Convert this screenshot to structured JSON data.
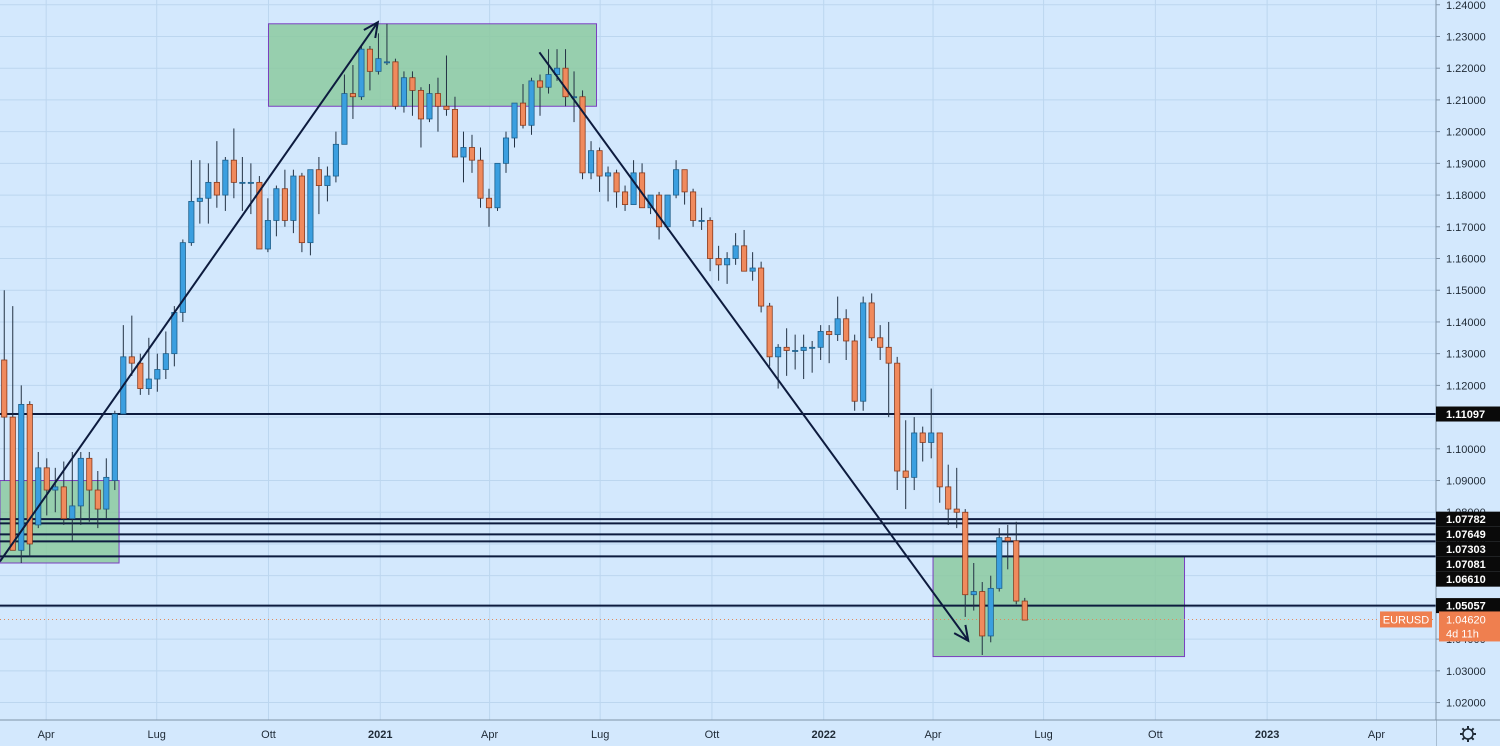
{
  "chart_data": {
    "type": "candlestick",
    "symbol": "EURUSD",
    "timeframe": "weekly",
    "y_axis": {
      "range": [
        1.0145,
        1.2415
      ],
      "ticks": [
        "1.02000",
        "1.03000",
        "1.04000",
        "1.05000",
        "1.06000",
        "1.07000",
        "1.08000",
        "1.09000",
        "1.10000",
        "1.11000",
        "1.12000",
        "1.13000",
        "1.14000",
        "1.15000",
        "1.16000",
        "1.17000",
        "1.18000",
        "1.19000",
        "1.20000",
        "1.21000",
        "1.22000",
        "1.23000",
        "1.24000"
      ]
    },
    "x_axis": {
      "ticks": [
        {
          "label": "Apr",
          "date": "2020-04-01",
          "bold": false
        },
        {
          "label": "Lug",
          "date": "2020-07-01",
          "bold": false
        },
        {
          "label": "Ott",
          "date": "2020-10-01",
          "bold": false
        },
        {
          "label": "2021",
          "date": "2021-01-01",
          "bold": true
        },
        {
          "label": "Apr",
          "date": "2021-04-01",
          "bold": false
        },
        {
          "label": "Lug",
          "date": "2021-07-01",
          "bold": false
        },
        {
          "label": "Ott",
          "date": "2021-10-01",
          "bold": false
        },
        {
          "label": "2022",
          "date": "2022-01-01",
          "bold": true
        },
        {
          "label": "Apr",
          "date": "2022-04-01",
          "bold": false
        },
        {
          "label": "Lug",
          "date": "2022-07-01",
          "bold": false
        },
        {
          "label": "Ott",
          "date": "2022-10-01",
          "bold": false
        },
        {
          "label": "2023",
          "date": "2023-01-01",
          "bold": true
        },
        {
          "label": "Apr",
          "date": "2023-04-01",
          "bold": false
        }
      ]
    },
    "x_start": "2020-02-23",
    "x_end": "2023-05-20",
    "candles": [
      {
        "date": "2020-02-23",
        "o": 1.128,
        "h": 1.15,
        "l": 1.09,
        "c": 1.11
      },
      {
        "date": "2020-03-01",
        "o": 1.11,
        "h": 1.145,
        "l": 1.068,
        "c": 1.068
      },
      {
        "date": "2020-03-08",
        "o": 1.068,
        "h": 1.12,
        "l": 1.064,
        "c": 1.114
      },
      {
        "date": "2020-03-15",
        "o": 1.114,
        "h": 1.115,
        "l": 1.066,
        "c": 1.07
      },
      {
        "date": "2020-03-22",
        "o": 1.076,
        "h": 1.099,
        "l": 1.075,
        "c": 1.094
      },
      {
        "date": "2020-03-29",
        "o": 1.094,
        "h": 1.097,
        "l": 1.079,
        "c": 1.087
      },
      {
        "date": "2020-04-05",
        "o": 1.087,
        "h": 1.094,
        "l": 1.08,
        "c": 1.088
      },
      {
        "date": "2020-04-12",
        "o": 1.088,
        "h": 1.096,
        "l": 1.076,
        "c": 1.078
      },
      {
        "date": "2020-04-19",
        "o": 1.078,
        "h": 1.099,
        "l": 1.071,
        "c": 1.082
      },
      {
        "date": "2020-04-26",
        "o": 1.082,
        "h": 1.099,
        "l": 1.076,
        "c": 1.097
      },
      {
        "date": "2020-05-03",
        "o": 1.097,
        "h": 1.099,
        "l": 1.077,
        "c": 1.087
      },
      {
        "date": "2020-05-10",
        "o": 1.087,
        "h": 1.093,
        "l": 1.075,
        "c": 1.081
      },
      {
        "date": "2020-05-17",
        "o": 1.081,
        "h": 1.097,
        "l": 1.078,
        "c": 1.091
      },
      {
        "date": "2020-05-24",
        "o": 1.09,
        "h": 1.112,
        "l": 1.087,
        "c": 1.111
      },
      {
        "date": "2020-05-31",
        "o": 1.111,
        "h": 1.139,
        "l": 1.111,
        "c": 1.129
      },
      {
        "date": "2020-06-07",
        "o": 1.129,
        "h": 1.142,
        "l": 1.123,
        "c": 1.127
      },
      {
        "date": "2020-06-14",
        "o": 1.127,
        "h": 1.13,
        "l": 1.117,
        "c": 1.119
      },
      {
        "date": "2020-06-21",
        "o": 1.119,
        "h": 1.135,
        "l": 1.117,
        "c": 1.122
      },
      {
        "date": "2020-06-28",
        "o": 1.122,
        "h": 1.13,
        "l": 1.118,
        "c": 1.125
      },
      {
        "date": "2020-07-05",
        "o": 1.125,
        "h": 1.137,
        "l": 1.122,
        "c": 1.13
      },
      {
        "date": "2020-07-12",
        "o": 1.13,
        "h": 1.145,
        "l": 1.126,
        "c": 1.143
      },
      {
        "date": "2020-07-19",
        "o": 1.143,
        "h": 1.166,
        "l": 1.14,
        "c": 1.165
      },
      {
        "date": "2020-07-26",
        "o": 1.165,
        "h": 1.191,
        "l": 1.164,
        "c": 1.178
      },
      {
        "date": "2020-08-02",
        "o": 1.178,
        "h": 1.191,
        "l": 1.171,
        "c": 1.179
      },
      {
        "date": "2020-08-09",
        "o": 1.179,
        "h": 1.19,
        "l": 1.171,
        "c": 1.184
      },
      {
        "date": "2020-08-16",
        "o": 1.184,
        "h": 1.197,
        "l": 1.176,
        "c": 1.18
      },
      {
        "date": "2020-08-23",
        "o": 1.18,
        "h": 1.192,
        "l": 1.175,
        "c": 1.191
      },
      {
        "date": "2020-08-30",
        "o": 1.191,
        "h": 1.201,
        "l": 1.179,
        "c": 1.184
      },
      {
        "date": "2020-09-06",
        "o": 1.184,
        "h": 1.192,
        "l": 1.175,
        "c": 1.184
      },
      {
        "date": "2020-09-13",
        "o": 1.184,
        "h": 1.19,
        "l": 1.174,
        "c": 1.184
      },
      {
        "date": "2020-09-20",
        "o": 1.184,
        "h": 1.186,
        "l": 1.163,
        "c": 1.163
      },
      {
        "date": "2020-09-27",
        "o": 1.163,
        "h": 1.179,
        "l": 1.162,
        "c": 1.172
      },
      {
        "date": "2020-10-04",
        "o": 1.172,
        "h": 1.183,
        "l": 1.167,
        "c": 1.182
      },
      {
        "date": "2020-10-11",
        "o": 1.182,
        "h": 1.188,
        "l": 1.17,
        "c": 1.172
      },
      {
        "date": "2020-10-18",
        "o": 1.172,
        "h": 1.188,
        "l": 1.168,
        "c": 1.186
      },
      {
        "date": "2020-10-25",
        "o": 1.186,
        "h": 1.187,
        "l": 1.162,
        "c": 1.165
      },
      {
        "date": "2020-11-01",
        "o": 1.165,
        "h": 1.188,
        "l": 1.161,
        "c": 1.188
      },
      {
        "date": "2020-11-08",
        "o": 1.188,
        "h": 1.192,
        "l": 1.174,
        "c": 1.183
      },
      {
        "date": "2020-11-15",
        "o": 1.183,
        "h": 1.189,
        "l": 1.178,
        "c": 1.186
      },
      {
        "date": "2020-11-22",
        "o": 1.186,
        "h": 1.2,
        "l": 1.184,
        "c": 1.196
      },
      {
        "date": "2020-11-29",
        "o": 1.196,
        "h": 1.218,
        "l": 1.196,
        "c": 1.212
      },
      {
        "date": "2020-12-06",
        "o": 1.212,
        "h": 1.221,
        "l": 1.204,
        "c": 1.211
      },
      {
        "date": "2020-12-13",
        "o": 1.211,
        "h": 1.227,
        "l": 1.21,
        "c": 1.226
      },
      {
        "date": "2020-12-20",
        "o": 1.226,
        "h": 1.227,
        "l": 1.213,
        "c": 1.219
      },
      {
        "date": "2020-12-27",
        "o": 1.219,
        "h": 1.231,
        "l": 1.218,
        "c": 1.223
      },
      {
        "date": "2021-01-03",
        "o": 1.222,
        "h": 1.234,
        "l": 1.221,
        "c": 1.222
      },
      {
        "date": "2021-01-10",
        "o": 1.222,
        "h": 1.223,
        "l": 1.207,
        "c": 1.208
      },
      {
        "date": "2021-01-17",
        "o": 1.208,
        "h": 1.219,
        "l": 1.206,
        "c": 1.217
      },
      {
        "date": "2021-01-24",
        "o": 1.217,
        "h": 1.219,
        "l": 1.205,
        "c": 1.213
      },
      {
        "date": "2021-01-31",
        "o": 1.213,
        "h": 1.214,
        "l": 1.195,
        "c": 1.204
      },
      {
        "date": "2021-02-07",
        "o": 1.204,
        "h": 1.215,
        "l": 1.203,
        "c": 1.212
      },
      {
        "date": "2021-02-14",
        "o": 1.212,
        "h": 1.217,
        "l": 1.2,
        "c": 1.208
      },
      {
        "date": "2021-02-21",
        "o": 1.208,
        "h": 1.224,
        "l": 1.205,
        "c": 1.207
      },
      {
        "date": "2021-02-28",
        "o": 1.207,
        "h": 1.211,
        "l": 1.193,
        "c": 1.192
      },
      {
        "date": "2021-03-07",
        "o": 1.192,
        "h": 1.2,
        "l": 1.184,
        "c": 1.195
      },
      {
        "date": "2021-03-14",
        "o": 1.195,
        "h": 1.199,
        "l": 1.187,
        "c": 1.191
      },
      {
        "date": "2021-03-21",
        "o": 1.191,
        "h": 1.195,
        "l": 1.176,
        "c": 1.179
      },
      {
        "date": "2021-03-28",
        "o": 1.179,
        "h": 1.182,
        "l": 1.17,
        "c": 1.176
      },
      {
        "date": "2021-04-04",
        "o": 1.176,
        "h": 1.19,
        "l": 1.175,
        "c": 1.19
      },
      {
        "date": "2021-04-11",
        "o": 1.19,
        "h": 1.2,
        "l": 1.187,
        "c": 1.198
      },
      {
        "date": "2021-04-18",
        "o": 1.198,
        "h": 1.209,
        "l": 1.195,
        "c": 1.209
      },
      {
        "date": "2021-04-25",
        "o": 1.209,
        "h": 1.215,
        "l": 1.201,
        "c": 1.202
      },
      {
        "date": "2021-05-02",
        "o": 1.202,
        "h": 1.217,
        "l": 1.199,
        "c": 1.216
      },
      {
        "date": "2021-05-09",
        "o": 1.216,
        "h": 1.218,
        "l": 1.205,
        "c": 1.214
      },
      {
        "date": "2021-05-16",
        "o": 1.214,
        "h": 1.226,
        "l": 1.212,
        "c": 1.218
      },
      {
        "date": "2021-05-23",
        "o": 1.218,
        "h": 1.226,
        "l": 1.216,
        "c": 1.22
      },
      {
        "date": "2021-05-30",
        "o": 1.22,
        "h": 1.226,
        "l": 1.208,
        "c": 1.211
      },
      {
        "date": "2021-06-06",
        "o": 1.211,
        "h": 1.219,
        "l": 1.203,
        "c": 1.211
      },
      {
        "date": "2021-06-13",
        "o": 1.211,
        "h": 1.213,
        "l": 1.185,
        "c": 1.187
      },
      {
        "date": "2021-06-20",
        "o": 1.187,
        "h": 1.197,
        "l": 1.185,
        "c": 1.194
      },
      {
        "date": "2021-06-27",
        "o": 1.194,
        "h": 1.195,
        "l": 1.181,
        "c": 1.186
      },
      {
        "date": "2021-07-04",
        "o": 1.186,
        "h": 1.189,
        "l": 1.178,
        "c": 1.187
      },
      {
        "date": "2021-07-11",
        "o": 1.187,
        "h": 1.188,
        "l": 1.176,
        "c": 1.181
      },
      {
        "date": "2021-07-18",
        "o": 1.181,
        "h": 1.183,
        "l": 1.175,
        "c": 1.177
      },
      {
        "date": "2021-07-25",
        "o": 1.177,
        "h": 1.191,
        "l": 1.177,
        "c": 1.187
      },
      {
        "date": "2021-08-01",
        "o": 1.187,
        "h": 1.19,
        "l": 1.176,
        "c": 1.176
      },
      {
        "date": "2021-08-08",
        "o": 1.176,
        "h": 1.18,
        "l": 1.174,
        "c": 1.18
      },
      {
        "date": "2021-08-15",
        "o": 1.18,
        "h": 1.181,
        "l": 1.166,
        "c": 1.17
      },
      {
        "date": "2021-08-22",
        "o": 1.17,
        "h": 1.18,
        "l": 1.169,
        "c": 1.18
      },
      {
        "date": "2021-08-29",
        "o": 1.18,
        "h": 1.191,
        "l": 1.179,
        "c": 1.188
      },
      {
        "date": "2021-09-05",
        "o": 1.188,
        "h": 1.188,
        "l": 1.177,
        "c": 1.181
      },
      {
        "date": "2021-09-12",
        "o": 1.181,
        "h": 1.182,
        "l": 1.17,
        "c": 1.172
      },
      {
        "date": "2021-09-19",
        "o": 1.172,
        "h": 1.176,
        "l": 1.169,
        "c": 1.172
      },
      {
        "date": "2021-09-26",
        "o": 1.172,
        "h": 1.173,
        "l": 1.156,
        "c": 1.16
      },
      {
        "date": "2021-10-03",
        "o": 1.16,
        "h": 1.164,
        "l": 1.153,
        "c": 1.158
      },
      {
        "date": "2021-10-10",
        "o": 1.158,
        "h": 1.162,
        "l": 1.152,
        "c": 1.16
      },
      {
        "date": "2021-10-17",
        "o": 1.16,
        "h": 1.168,
        "l": 1.158,
        "c": 1.164
      },
      {
        "date": "2021-10-24",
        "o": 1.164,
        "h": 1.169,
        "l": 1.156,
        "c": 1.156
      },
      {
        "date": "2021-10-31",
        "o": 1.156,
        "h": 1.162,
        "l": 1.153,
        "c": 1.157
      },
      {
        "date": "2021-11-07",
        "o": 1.157,
        "h": 1.159,
        "l": 1.143,
        "c": 1.145
      },
      {
        "date": "2021-11-14",
        "o": 1.145,
        "h": 1.146,
        "l": 1.126,
        "c": 1.129
      },
      {
        "date": "2021-11-21",
        "o": 1.129,
        "h": 1.133,
        "l": 1.119,
        "c": 1.132
      },
      {
        "date": "2021-11-28",
        "o": 1.132,
        "h": 1.138,
        "l": 1.123,
        "c": 1.131
      },
      {
        "date": "2021-12-05",
        "o": 1.131,
        "h": 1.136,
        "l": 1.125,
        "c": 1.131
      },
      {
        "date": "2021-12-12",
        "o": 1.131,
        "h": 1.136,
        "l": 1.122,
        "c": 1.132
      },
      {
        "date": "2021-12-19",
        "o": 1.132,
        "h": 1.134,
        "l": 1.124,
        "c": 1.132
      },
      {
        "date": "2021-12-26",
        "o": 1.132,
        "h": 1.139,
        "l": 1.128,
        "c": 1.137
      },
      {
        "date": "2022-01-02",
        "o": 1.137,
        "h": 1.139,
        "l": 1.127,
        "c": 1.136
      },
      {
        "date": "2022-01-09",
        "o": 1.136,
        "h": 1.148,
        "l": 1.134,
        "c": 1.141
      },
      {
        "date": "2022-01-16",
        "o": 1.141,
        "h": 1.144,
        "l": 1.128,
        "c": 1.134
      },
      {
        "date": "2022-01-23",
        "o": 1.134,
        "h": 1.136,
        "l": 1.112,
        "c": 1.115
      },
      {
        "date": "2022-01-30",
        "o": 1.115,
        "h": 1.148,
        "l": 1.112,
        "c": 1.146
      },
      {
        "date": "2022-02-06",
        "o": 1.146,
        "h": 1.149,
        "l": 1.134,
        "c": 1.135
      },
      {
        "date": "2022-02-13",
        "o": 1.135,
        "h": 1.139,
        "l": 1.128,
        "c": 1.132
      },
      {
        "date": "2022-02-20",
        "o": 1.132,
        "h": 1.14,
        "l": 1.11,
        "c": 1.127
      },
      {
        "date": "2022-02-27",
        "o": 1.127,
        "h": 1.129,
        "l": 1.087,
        "c": 1.093
      },
      {
        "date": "2022-03-06",
        "o": 1.093,
        "h": 1.109,
        "l": 1.081,
        "c": 1.091
      },
      {
        "date": "2022-03-13",
        "o": 1.091,
        "h": 1.11,
        "l": 1.087,
        "c": 1.105
      },
      {
        "date": "2022-03-20",
        "o": 1.105,
        "h": 1.107,
        "l": 1.096,
        "c": 1.102
      },
      {
        "date": "2022-03-27",
        "o": 1.102,
        "h": 1.119,
        "l": 1.097,
        "c": 1.105
      },
      {
        "date": "2022-04-03",
        "o": 1.105,
        "h": 1.105,
        "l": 1.083,
        "c": 1.088
      },
      {
        "date": "2022-04-10",
        "o": 1.088,
        "h": 1.095,
        "l": 1.076,
        "c": 1.081
      },
      {
        "date": "2022-04-17",
        "o": 1.081,
        "h": 1.094,
        "l": 1.075,
        "c": 1.08
      },
      {
        "date": "2022-04-24",
        "o": 1.08,
        "h": 1.081,
        "l": 1.047,
        "c": 1.054
      },
      {
        "date": "2022-05-01",
        "o": 1.054,
        "h": 1.064,
        "l": 1.049,
        "c": 1.055
      },
      {
        "date": "2022-05-08",
        "o": 1.055,
        "h": 1.058,
        "l": 1.035,
        "c": 1.041
      },
      {
        "date": "2022-05-15",
        "o": 1.041,
        "h": 1.06,
        "l": 1.039,
        "c": 1.056
      },
      {
        "date": "2022-05-22",
        "o": 1.056,
        "h": 1.075,
        "l": 1.055,
        "c": 1.072
      },
      {
        "date": "2022-05-29",
        "o": 1.072,
        "h": 1.076,
        "l": 1.062,
        "c": 1.071
      },
      {
        "date": "2022-06-05",
        "o": 1.071,
        "h": 1.077,
        "l": 1.051,
        "c": 1.052
      },
      {
        "date": "2022-06-12",
        "o": 1.052,
        "h": 1.053,
        "l": 1.046,
        "c": 1.046
      }
    ],
    "horizontal_levels": [
      {
        "price": 1.11097,
        "label": "1.11097"
      },
      {
        "price": 1.07782,
        "label": "1.07782"
      },
      {
        "price": 1.07649,
        "label": "1.07649"
      },
      {
        "price": 1.07303,
        "label": "1.07303"
      },
      {
        "price": 1.07081,
        "label": "1.07081"
      },
      {
        "price": 1.0661,
        "label": "1.06610"
      },
      {
        "price": 1.05057,
        "label": "1.05057"
      }
    ],
    "zones": [
      {
        "from": "2020-02-23",
        "to": "2020-05-31",
        "low": 1.064,
        "high": 1.09
      },
      {
        "from": "2020-10-01",
        "to": "2021-06-28",
        "low": 1.208,
        "high": 1.234
      },
      {
        "from": "2022-04-01",
        "to": "2022-10-25",
        "low": 1.0345,
        "high": 1.066
      }
    ],
    "trend_arrows": [
      {
        "from_date": "2020-02-23",
        "from_price": 1.0645,
        "to_date": "2020-12-30",
        "to_price": 1.2345,
        "head": true
      },
      {
        "from_date": "2021-05-12",
        "from_price": 1.225,
        "to_date": "2022-04-30",
        "to_price": 1.0395,
        "head": true
      }
    ],
    "current_price": {
      "symbol": "EURUSD",
      "value": "1.04620",
      "countdown": "4d 11h",
      "price": 1.0462
    },
    "colors": {
      "background": "#d3e8fd",
      "up": "#3b9fe0",
      "down": "#f08a5d",
      "up_border": "#1e5f8a",
      "down_border": "#8a3a1c",
      "zone_fill": "#8ccaa0",
      "zone_border": "#7a3fc0",
      "level_line": "#0d1b3e",
      "label_bg": "#0a0a0a",
      "price_label_bg": "#ef7f4f"
    },
    "grid": true
  }
}
